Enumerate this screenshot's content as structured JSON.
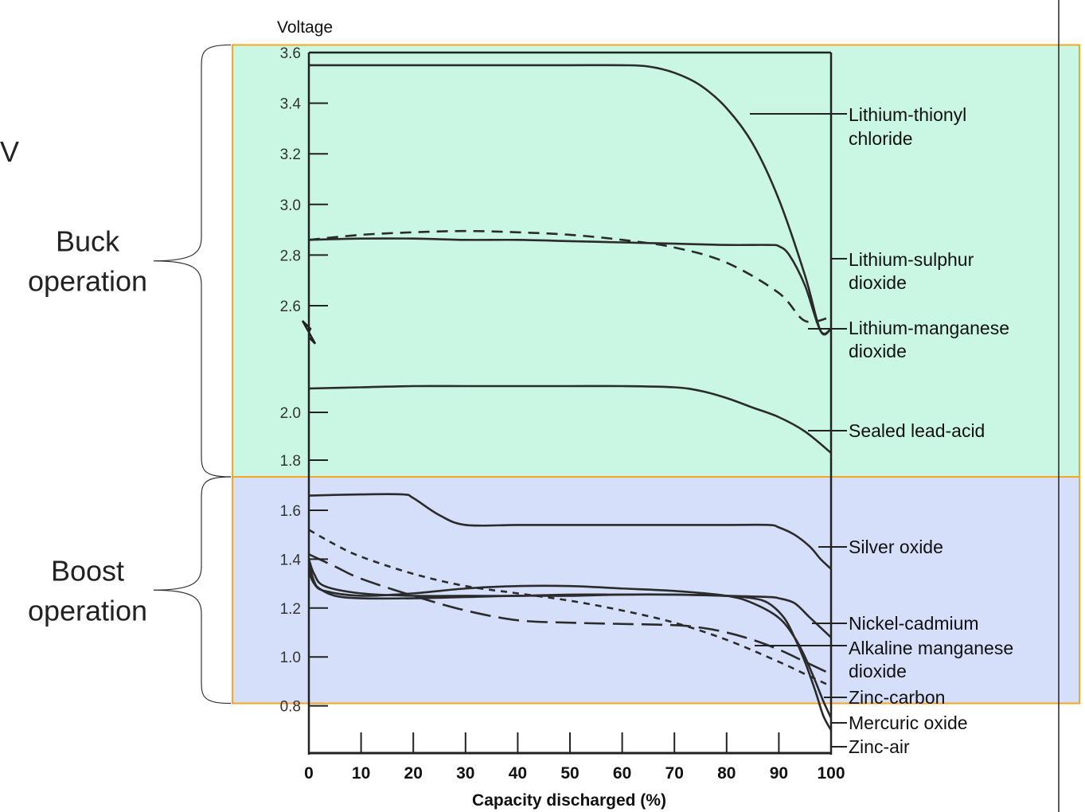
{
  "chart_data": {
    "type": "line",
    "ylabel": "Voltage",
    "xlabel": "Capacity discharged (%)",
    "xlim": [
      0,
      100
    ],
    "x_ticks": [
      0,
      10,
      20,
      30,
      40,
      50,
      60,
      70,
      80,
      90,
      100
    ],
    "y_ticks": [
      3.6,
      3.4,
      3.2,
      3.0,
      2.8,
      2.6,
      2.0,
      1.8,
      1.6,
      1.4,
      1.2,
      1.0,
      0.8
    ],
    "y_ticks_labels": [
      "3.6",
      "3.4",
      "3.2",
      "3.0",
      "2.8",
      "2.6",
      "2.0",
      "1.8",
      "1.6",
      "1.4",
      "1.2",
      "1.0",
      "0.8"
    ],
    "colors": {
      "buck_region": "#c9f7e3",
      "boost_region": "#d6dffa",
      "region_border": "#f5a623",
      "curve": "#2b2b2b"
    },
    "regions": [
      {
        "label_line1": "Buck",
        "label_line2": "operation",
        "y_range": [
          1.73,
          3.63
        ]
      },
      {
        "label_line1": "Boost",
        "label_line2": "operation",
        "y_range": [
          0.81,
          1.73
        ]
      }
    ],
    "stray_label": "V",
    "series": [
      {
        "name": "Lithium-thionyl",
        "name2": "chloride",
        "style": "solid",
        "x": [
          0,
          10,
          20,
          30,
          40,
          50,
          60,
          65,
          70,
          75,
          80,
          85,
          90,
          95,
          98,
          100
        ],
        "y": [
          3.55,
          3.55,
          3.55,
          3.55,
          3.55,
          3.55,
          3.55,
          3.545,
          3.52,
          3.47,
          3.38,
          3.24,
          3.02,
          2.72,
          2.5,
          2.35
        ]
      },
      {
        "name": "Lithium-sulphur",
        "name2": "dioxide",
        "style": "solid",
        "x": [
          0,
          10,
          20,
          30,
          40,
          50,
          60,
          70,
          80,
          88,
          90,
          92,
          95,
          98,
          100
        ],
        "y": [
          2.86,
          2.865,
          2.865,
          2.86,
          2.86,
          2.855,
          2.85,
          2.845,
          2.84,
          2.84,
          2.835,
          2.8,
          2.68,
          2.5,
          2.35
        ]
      },
      {
        "name": "Lithium-manganese",
        "name2": "dioxide",
        "style": "dashed",
        "x": [
          0,
          10,
          20,
          30,
          40,
          50,
          60,
          70,
          80,
          90,
          95,
          100
        ],
        "y": [
          2.86,
          2.88,
          2.89,
          2.895,
          2.89,
          2.88,
          2.86,
          2.83,
          2.77,
          2.65,
          2.54,
          2.4
        ]
      },
      {
        "name": "Sealed lead-acid",
        "name2": "",
        "style": "solid",
        "x": [
          0,
          10,
          20,
          30,
          40,
          50,
          60,
          70,
          75,
          80,
          85,
          90,
          95,
          100
        ],
        "y": [
          2.1,
          2.105,
          2.11,
          2.11,
          2.11,
          2.11,
          2.11,
          2.105,
          2.09,
          2.06,
          2.02,
          1.98,
          1.92,
          1.83
        ]
      },
      {
        "name": "Silver oxide",
        "name2": "",
        "style": "solid",
        "x": [
          0,
          10,
          18,
          20,
          25,
          30,
          40,
          50,
          60,
          70,
          80,
          88,
          90,
          93,
          96,
          98,
          100
        ],
        "y": [
          1.66,
          1.665,
          1.665,
          1.65,
          1.58,
          1.54,
          1.54,
          1.54,
          1.54,
          1.54,
          1.54,
          1.54,
          1.53,
          1.5,
          1.45,
          1.4,
          1.36
        ]
      },
      {
        "name": "Nickel-cadmium",
        "name2": "",
        "style": "solid",
        "x": [
          0,
          1,
          2,
          5,
          10,
          20,
          30,
          40,
          50,
          60,
          70,
          80,
          88,
          90,
          93,
          96,
          100
        ],
        "y": [
          1.38,
          1.31,
          1.28,
          1.25,
          1.24,
          1.24,
          1.245,
          1.25,
          1.25,
          1.255,
          1.255,
          1.25,
          1.245,
          1.24,
          1.22,
          1.16,
          1.08
        ]
      },
      {
        "name": "Alkaline manganese",
        "name2": "dioxide",
        "style": "longdash",
        "x": [
          0,
          5,
          10,
          20,
          30,
          40,
          50,
          60,
          70,
          75,
          80,
          85,
          90,
          95,
          100
        ],
        "y": [
          1.42,
          1.37,
          1.32,
          1.25,
          1.19,
          1.15,
          1.14,
          1.135,
          1.13,
          1.12,
          1.1,
          1.07,
          1.03,
          0.98,
          0.93
        ]
      },
      {
        "name": "Zinc-carbon",
        "name2": "",
        "style": "shortdash",
        "x": [
          0,
          5,
          10,
          20,
          30,
          40,
          50,
          60,
          70,
          80,
          90,
          95,
          100
        ],
        "y": [
          1.52,
          1.46,
          1.41,
          1.34,
          1.29,
          1.26,
          1.23,
          1.19,
          1.14,
          1.07,
          0.98,
          0.93,
          0.88
        ]
      },
      {
        "name": "Mercuric oxide",
        "name2": "",
        "style": "solid",
        "x": [
          0,
          1,
          3,
          10,
          20,
          30,
          40,
          50,
          60,
          70,
          80,
          85,
          90,
          93,
          95,
          97,
          98.5,
          100
        ],
        "y": [
          1.35,
          1.3,
          1.27,
          1.25,
          1.26,
          1.28,
          1.29,
          1.29,
          1.28,
          1.27,
          1.25,
          1.22,
          1.16,
          1.08,
          1.0,
          0.9,
          0.82,
          0.75
        ]
      },
      {
        "name": "Zinc-air",
        "name2": "",
        "style": "solid",
        "x": [
          0,
          1,
          3,
          10,
          20,
          30,
          40,
          50,
          60,
          70,
          80,
          85,
          88,
          91,
          93,
          95,
          97,
          98.5,
          100
        ],
        "y": [
          1.4,
          1.34,
          1.29,
          1.26,
          1.25,
          1.25,
          1.25,
          1.255,
          1.255,
          1.255,
          1.25,
          1.24,
          1.22,
          1.16,
          1.08,
          0.98,
          0.86,
          0.76,
          0.7
        ]
      }
    ]
  }
}
